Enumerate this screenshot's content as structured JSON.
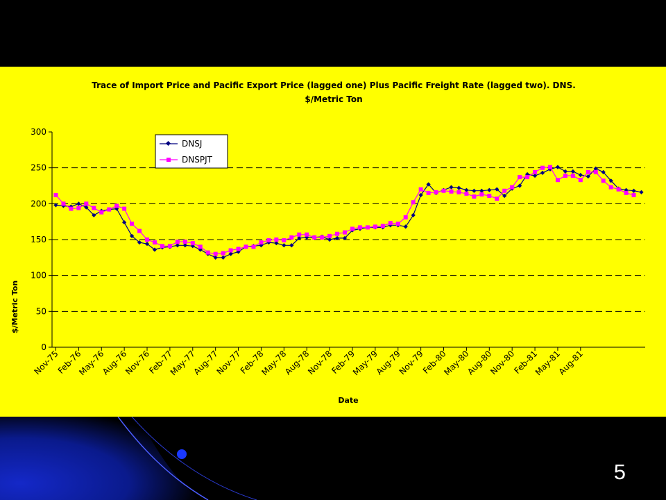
{
  "slide": {
    "number": "5"
  },
  "colors": {
    "background": "#000000",
    "chart_bg": "#ffff00",
    "series1": "#000080",
    "series2": "#ff00ff"
  },
  "chart_data": {
    "type": "line",
    "title": "Trace of Import Price and Pacific Export Price (lagged one) Plus Pacific Freight Rate (lagged two). DNS.",
    "subtitle": "$/Metric Ton",
    "xlabel": "Date",
    "ylabel": "$/Metric Ton",
    "ylim": [
      0,
      300
    ],
    "yticks": [
      "0",
      "50",
      "100",
      "150",
      "200",
      "250",
      "300"
    ],
    "grid": "horizontal dashed",
    "legend_position": "top-left",
    "x_tick_labels": [
      "Nov-75",
      "Feb-76",
      "May-76",
      "Aug-76",
      "Nov-76",
      "Feb-77",
      "May-77",
      "Aug-77",
      "Nov-77",
      "Feb-78",
      "May-78",
      "Aug-78",
      "Nov-78",
      "Feb-79",
      "May-79",
      "Aug-79",
      "Nov-79",
      "Feb-80",
      "May-80",
      "Aug-80",
      "Nov-80",
      "Feb-81",
      "May-81",
      "Aug-81"
    ],
    "series": [
      {
        "name": "DNSJ",
        "marker": "diamond",
        "values": [
          198,
          197,
          196,
          200,
          195,
          184,
          190,
          192,
          193,
          174,
          155,
          146,
          144,
          136,
          139,
          140,
          142,
          142,
          141,
          136,
          130,
          125,
          125,
          130,
          133,
          140,
          141,
          142,
          146,
          145,
          142,
          142,
          152,
          153,
          153,
          154,
          150,
          152,
          152,
          163,
          165,
          167,
          167,
          167,
          170,
          170,
          168,
          184,
          212,
          227,
          215,
          219,
          223,
          222,
          219,
          218,
          218,
          219,
          220,
          211,
          221,
          225,
          241,
          239,
          243,
          248,
          251,
          245,
          245,
          240,
          238,
          249,
          244,
          232,
          221,
          219,
          218,
          216
        ]
      },
      {
        "name": "DNSPJT",
        "marker": "square",
        "values": [
          212,
          200,
          193,
          194,
          200,
          194,
          188,
          192,
          197,
          193,
          172,
          162,
          150,
          146,
          141,
          141,
          147,
          147,
          145,
          140,
          132,
          130,
          131,
          135,
          137,
          140,
          140,
          146,
          149,
          150,
          149,
          153,
          157,
          157,
          153,
          153,
          155,
          158,
          160,
          165,
          167,
          167,
          168,
          169,
          173,
          172,
          181,
          202,
          220,
          215,
          216,
          218,
          217,
          216,
          214,
          210,
          213,
          211,
          207,
          218,
          223,
          237,
          237,
          244,
          250,
          251,
          233,
          239,
          239,
          233,
          244,
          244,
          232,
          223,
          220,
          215,
          212
        ]
      }
    ]
  }
}
